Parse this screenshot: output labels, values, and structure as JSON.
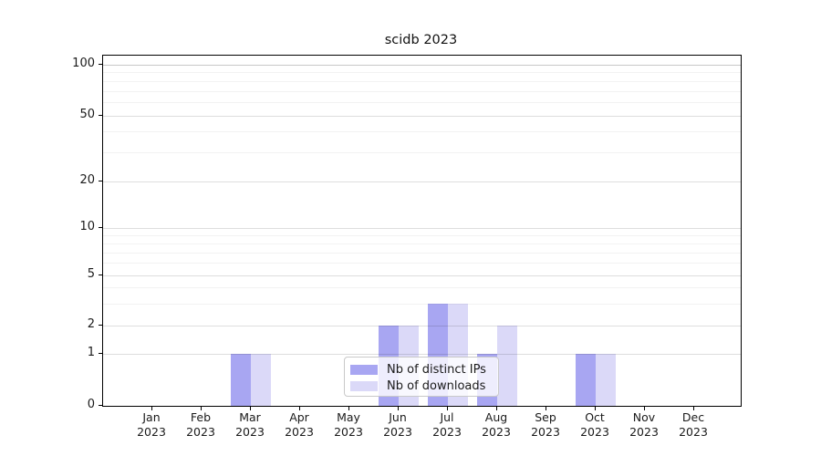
{
  "chart_data": {
    "type": "bar",
    "title": "scidb 2023",
    "categories": [
      "Jan",
      "Feb",
      "Mar",
      "Apr",
      "May",
      "Jun",
      "Jul",
      "Aug",
      "Sep",
      "Oct",
      "Nov",
      "Dec"
    ],
    "x_tick_second_line": "2023",
    "series": [
      {
        "name": "Nb of distinct IPs",
        "color": "#a8a6f2",
        "values": [
          0,
          0,
          1,
          0,
          0,
          2,
          3,
          1,
          0,
          1,
          0,
          0
        ]
      },
      {
        "name": "Nb of downloads",
        "color": "#dbd9f8",
        "values": [
          0,
          0,
          1,
          0,
          0,
          2,
          3,
          2,
          0,
          1,
          0,
          0
        ]
      }
    ],
    "y_axis": {
      "scale": "log above 1, linear 0-1",
      "ticks": [
        0,
        1,
        2,
        5,
        10,
        20,
        50,
        100
      ],
      "minor_gridlines": [
        3,
        4,
        6,
        7,
        8,
        9,
        30,
        40,
        60,
        70,
        80,
        90
      ],
      "range": [
        0,
        115
      ]
    },
    "grid": "on",
    "legend_position": "lower center"
  }
}
